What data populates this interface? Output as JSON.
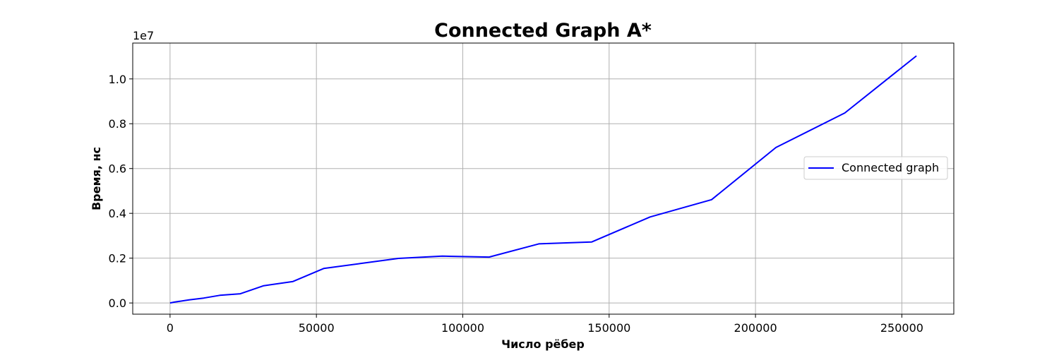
{
  "chart_data": {
    "type": "line",
    "title": "Connected Graph A*",
    "xlabel": "Число рёбер",
    "ylabel": "Время, нс",
    "y_offset_label": "1e7",
    "xlim": [
      -12750,
      267750
    ],
    "ylim": [
      -0.05,
      1.16
    ],
    "x_ticks": [
      0,
      50000,
      100000,
      150000,
      200000,
      250000
    ],
    "x_tick_labels": [
      "0",
      "50000",
      "100000",
      "150000",
      "200000",
      "250000"
    ],
    "y_ticks": [
      0.0,
      0.2,
      0.4,
      0.6,
      0.8,
      1.0
    ],
    "y_tick_labels": [
      "0.0",
      "0.2",
      "0.4",
      "0.6",
      "0.8",
      "1.0"
    ],
    "grid": true,
    "legend_position": "center-right",
    "series": [
      {
        "name": "Connected graph",
        "color": "#0000ff",
        "x": [
          0,
          1500,
          6500,
          11500,
          17000,
          24000,
          32000,
          42000,
          52500,
          65000,
          78000,
          93000,
          109000,
          126000,
          144000,
          164000,
          185000,
          207000,
          230500,
          255000
        ],
        "y": [
          0.0,
          0.004,
          0.014,
          0.022,
          0.034,
          0.041,
          0.077,
          0.096,
          0.154,
          0.176,
          0.199,
          0.209,
          0.205,
          0.264,
          0.272,
          0.384,
          0.461,
          0.694,
          0.848,
          1.103
        ]
      }
    ]
  }
}
